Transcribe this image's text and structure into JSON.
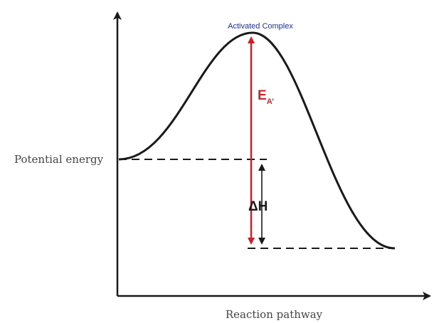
{
  "y_axis_label": "Potential energy",
  "x_axis_label": "Reaction pathway",
  "peak_label": "Activated Complex",
  "activation_energy": {
    "symbol": "E",
    "subscript": "A’"
  },
  "enthalpy_label": "ΔH",
  "colors": {
    "curve": "#1a1a1a",
    "axes": "#1a1a1a",
    "activation_arrow": "#cc1f2a",
    "activation_label": "#cc1f2a",
    "peak_label": "#1f2fa0",
    "axis_text": "#444444"
  }
}
